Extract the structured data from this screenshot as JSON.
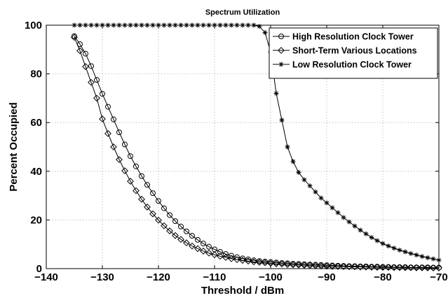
{
  "chart_data": {
    "type": "line",
    "title": "Spectrum Utilization",
    "xlabel": "Threshold / dBm",
    "ylabel": "Percent Occupied",
    "xlim": [
      -140,
      -70
    ],
    "ylim": [
      0,
      100
    ],
    "xticks": [
      -140,
      -130,
      -120,
      -110,
      -100,
      -90,
      -80,
      -70
    ],
    "yticks": [
      0,
      20,
      40,
      60,
      80,
      100
    ],
    "grid": true,
    "legend_position": "top-right",
    "series": [
      {
        "name": "High Resolution Clock Tower",
        "marker": "circle",
        "x": [
          -135,
          -134,
          -133,
          -132,
          -131,
          -130,
          -129,
          -128,
          -127,
          -126,
          -125,
          -124,
          -123,
          -122,
          -121,
          -120,
          -119,
          -118,
          -117,
          -116,
          -115,
          -114,
          -113,
          -112,
          -111,
          -110,
          -109,
          -108,
          -107,
          -106,
          -105,
          -104,
          -103,
          -102,
          -101,
          -100,
          -99,
          -98,
          -97,
          -96,
          -95,
          -94,
          -93,
          -92,
          -91,
          -90,
          -89,
          -88,
          -87,
          -86,
          -85,
          -84,
          -83,
          -82,
          -81,
          -80,
          -79,
          -78,
          -77,
          -76,
          -75,
          -74,
          -73,
          -72,
          -71,
          -70
        ],
        "y": [
          95.5,
          92.2,
          88.3,
          83.2,
          77.5,
          71.8,
          66.5,
          61.3,
          56.0,
          51.0,
          46.2,
          42.0,
          38.0,
          34.4,
          31.0,
          27.8,
          24.8,
          22.0,
          19.5,
          17.3,
          15.3,
          13.5,
          11.8,
          10.3,
          9.0,
          7.9,
          6.9,
          6.0,
          5.3,
          4.7,
          4.2,
          3.8,
          3.4,
          3.1,
          2.9,
          2.7,
          2.5,
          2.3,
          2.2,
          2.0,
          1.9,
          1.8,
          1.7,
          1.6,
          1.5,
          1.4,
          1.3,
          1.2,
          1.1,
          1.0,
          1.0,
          0.9,
          0.9,
          0.8,
          0.8,
          0.7,
          0.7,
          0.6,
          0.6,
          0.6,
          0.5,
          0.5,
          0.5,
          0.5,
          0.4,
          0.4
        ]
      },
      {
        "name": "Short-Term Various Locations",
        "marker": "diamond",
        "x": [
          -135,
          -134,
          -133,
          -132,
          -131,
          -130,
          -129,
          -128,
          -127,
          -126,
          -125,
          -124,
          -123,
          -122,
          -121,
          -120,
          -119,
          -118,
          -117,
          -116,
          -115,
          -114,
          -113,
          -112,
          -111,
          -110,
          -109,
          -108,
          -107,
          -106,
          -105,
          -104,
          -103,
          -102,
          -101,
          -100,
          -99,
          -98,
          -97,
          -96,
          -95,
          -94,
          -93,
          -92,
          -91,
          -90,
          -89,
          -88,
          -87,
          -86,
          -85,
          -84,
          -83,
          -82,
          -81,
          -80,
          -79,
          -78,
          -77,
          -76,
          -75,
          -74,
          -73,
          -72,
          -71,
          -70
        ],
        "y": [
          95.0,
          89.5,
          83.0,
          76.5,
          70.0,
          61.5,
          55.5,
          50.0,
          44.8,
          40.2,
          35.9,
          32.0,
          28.5,
          25.3,
          22.5,
          19.9,
          17.6,
          15.5,
          13.6,
          12.0,
          10.6,
          9.3,
          8.2,
          7.2,
          6.4,
          5.7,
          5.1,
          4.6,
          4.1,
          3.7,
          3.4,
          3.1,
          2.8,
          2.6,
          2.4,
          2.2,
          2.0,
          1.9,
          1.7,
          1.6,
          1.5,
          1.4,
          1.3,
          1.2,
          1.1,
          1.0,
          0.95,
          0.9,
          0.85,
          0.8,
          0.75,
          0.7,
          0.65,
          0.6,
          0.55,
          0.5,
          0.5,
          0.45,
          0.45,
          0.4,
          0.4,
          0.35,
          0.35,
          0.3,
          0.3,
          0.3
        ]
      },
      {
        "name": "Low Resolution Clock Tower",
        "marker": "asterisk",
        "x": [
          -135,
          -134,
          -133,
          -132,
          -131,
          -130,
          -129,
          -128,
          -127,
          -126,
          -125,
          -124,
          -123,
          -122,
          -121,
          -120,
          -119,
          -118,
          -117,
          -116,
          -115,
          -114,
          -113,
          -112,
          -111,
          -110,
          -109,
          -108,
          -107,
          -106,
          -105,
          -104,
          -103,
          -102,
          -101,
          -100,
          -99,
          -98,
          -97,
          -96,
          -95,
          -94,
          -93,
          -92,
          -91,
          -90,
          -89,
          -88,
          -87,
          -86,
          -85,
          -84,
          -83,
          -82,
          -81,
          -80,
          -79,
          -78,
          -77,
          -76,
          -75,
          -74,
          -73,
          -72,
          -71,
          -70
        ],
        "y": [
          100,
          100,
          100,
          100,
          100,
          100,
          100,
          100,
          100,
          100,
          100,
          100,
          100,
          100,
          100,
          100,
          100,
          100,
          100,
          100,
          100,
          100,
          100,
          100,
          100,
          100,
          100,
          100,
          100,
          100,
          100,
          100,
          100,
          99.5,
          97.0,
          89.0,
          72.0,
          61.0,
          50.0,
          44.0,
          39.5,
          36.5,
          34.0,
          31.5,
          29.0,
          27.0,
          25.0,
          23.0,
          21.0,
          19.2,
          17.5,
          15.8,
          14.3,
          12.8,
          11.5,
          10.3,
          9.3,
          8.4,
          7.6,
          6.9,
          6.2,
          5.6,
          5.0,
          4.5,
          4.0,
          3.5
        ]
      }
    ]
  }
}
